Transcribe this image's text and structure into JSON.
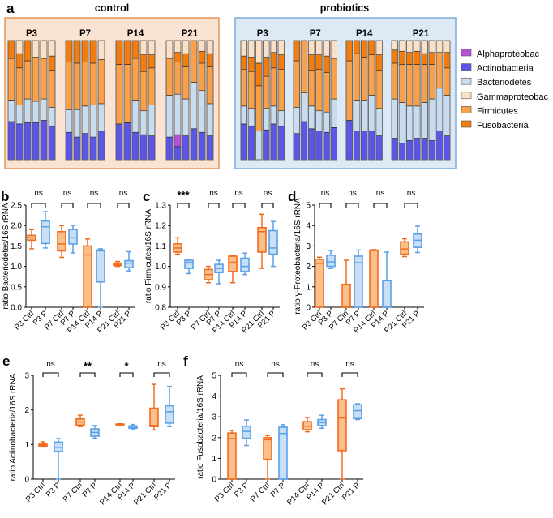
{
  "panel_letters": {
    "a": "a",
    "b": "b",
    "c": "c",
    "d": "d",
    "e": "e",
    "f": "f"
  },
  "colors": {
    "Alphaproteobac": "#b552d8",
    "Actinobacteria": "#5b55e8",
    "Bacteriodetes": "#c8dcf0",
    "Gammaproteobac": "#fbe0c6",
    "Firmicutes": "#f9a04a",
    "Fusobacteria": "#f27c0e",
    "ctrl_stroke": "#f26b1d",
    "ctrl_fill": "#fbc08a",
    "p_stroke": "#5aa0e6",
    "p_fill": "#c9dff5",
    "control_bg": "#fbe3d3",
    "control_border": "#e8955a",
    "probiotics_bg": "#dde9f5",
    "probiotics_border": "#7aaedd"
  },
  "chart_data": [
    {
      "type": "bar",
      "stacked": true,
      "panel": "a",
      "legend": [
        "Alphaproteobac",
        "Actinobacteria",
        "Bacteriodetes",
        "Gammaproteobac",
        "Firmicutes",
        "Fusobacteria"
      ],
      "legend_position": "right",
      "stack_order_bottom_to_top": [
        "Actinobacteria",
        "Alphaproteobac",
        "Bacteriodetes",
        "Firmicutes",
        "Fusobacteria",
        "Gammaproteobac"
      ],
      "conditions": [
        {
          "title": "control",
          "groups": [
            {
              "label": "P3",
              "bars": [
                [
                  0.32,
                  0,
                  0.18,
                  0.35,
                  0.15,
                  0
                ],
                [
                  0.3,
                  0,
                  0.16,
                  0.31,
                  0.12,
                  0.11
                ],
                [
                  0.31,
                  0,
                  0.2,
                  0.32,
                  0.17,
                  0
                ],
                [
                  0.31,
                  0,
                  0.18,
                  0.37,
                  0,
                  0.14
                ],
                [
                  0.33,
                  0,
                  0.18,
                  0.34,
                  0,
                  0.15
                ],
                [
                  0.28,
                  0,
                  0.16,
                  0.31,
                  0.12,
                  0.13
                ]
              ]
            },
            {
              "label": "P7",
              "bars": [
                [
                  0.23,
                  0,
                  0.19,
                  0.4,
                  0.18,
                  0
                ],
                [
                  0.19,
                  0,
                  0.23,
                  0.39,
                  0.19,
                  0
                ],
                [
                  0.22,
                  0,
                  0.23,
                  0.37,
                  0.18,
                  0
                ],
                [
                  0.19,
                  0,
                  0.27,
                  0.35,
                  0.19,
                  0
                ],
                [
                  0.24,
                  0,
                  0.23,
                  0.37,
                  0,
                  0.16
                ]
              ]
            },
            {
              "label": "P14",
              "bars": [
                [
                  0.3,
                  0,
                  0,
                  0.5,
                  0.2,
                  0
                ],
                [
                  0.31,
                  0,
                  0,
                  0.49,
                  0.2,
                  0
                ],
                [
                  0.23,
                  0,
                  0.27,
                  0.35,
                  0.15,
                  0
                ],
                [
                  0.21,
                  0,
                  0.2,
                  0.33,
                  0.14,
                  0.12
                ],
                [
                  0.2,
                  0,
                  0.26,
                  0.31,
                  0.11,
                  0.12
                ]
              ]
            },
            {
              "label": "P21",
              "bars": [
                [
                  0.19,
                  0,
                  0.35,
                  0.31,
                  0,
                  0.15
                ],
                [
                  0.11,
                  0.1,
                  0.34,
                  0.27,
                  0.08,
                  0.1
                ],
                [
                  0.2,
                  0,
                  0.31,
                  0.27,
                  0.11,
                  0.11
                ],
                [
                  0.26,
                  0,
                  0.39,
                  0.35,
                  0,
                  0
                ],
                [
                  0.23,
                  0,
                  0.35,
                  0.23,
                  0.1,
                  0.09
                ],
                [
                  0.2,
                  0,
                  0.27,
                  0.31,
                  0.11,
                  0.11
                ]
              ]
            }
          ]
        },
        {
          "title": "probiotics",
          "groups": [
            {
              "label": "P3",
              "bars": [
                [
                  0.3,
                  0,
                  0.15,
                  0.31,
                  0.11,
                  0.13
                ],
                [
                  0.28,
                  0,
                  0.15,
                  0.31,
                  0.12,
                  0.14
                ],
                [
                  0,
                  0,
                  0.24,
                  0.38,
                  0.19,
                  0.19
                ],
                [
                  0.25,
                  0,
                  0.18,
                  0.27,
                  0.16,
                  0.14
                ],
                [
                  0.3,
                  0,
                  0.15,
                  0.32,
                  0.13,
                  0.1
                ],
                [
                  0.28,
                  0,
                  0.13,
                  0.35,
                  0.12,
                  0.12
                ]
              ]
            },
            {
              "label": "P7",
              "bars": [
                [
                  0.22,
                  0,
                  0.22,
                  0.39,
                  0.17,
                  0
                ],
                [
                  0.32,
                  0,
                  0.24,
                  0.44,
                  0,
                  0
                ],
                [
                  0.26,
                  0,
                  0.19,
                  0.3,
                  0.13,
                  0.12
                ],
                [
                  0.24,
                  0,
                  0.17,
                  0.35,
                  0.12,
                  0.12
                ],
                [
                  0.23,
                  0,
                  0.17,
                  0.33,
                  0.14,
                  0.13
                ],
                [
                  0.27,
                  0,
                  0.24,
                  0.34,
                  0,
                  0.15
                ]
              ]
            },
            {
              "label": "P14",
              "bars": [
                [
                  0.33,
                  0,
                  0,
                  0.5,
                  0.17,
                  0
                ],
                [
                  0.24,
                  0,
                  0.26,
                  0.39,
                  0.11,
                  0
                ],
                [
                  0.24,
                  0,
                  0.26,
                  0.36,
                  0.14,
                  0
                ],
                [
                  0.24,
                  0,
                  0.3,
                  0.34,
                  0.12,
                  0
                ],
                [
                  0.2,
                  0,
                  0.23,
                  0.32,
                  0.13,
                  0.12
                ]
              ]
            },
            {
              "label": "P21",
              "bars": [
                [
                  0.18,
                  0,
                  0.33,
                  0.3,
                  0.11,
                  0.08
                ],
                [
                  0.14,
                  0,
                  0.34,
                  0.32,
                  0.11,
                  0.09
                ],
                [
                  0.16,
                  0,
                  0.29,
                  0.35,
                  0.1,
                  0.1
                ],
                [
                  0.18,
                  0,
                  0.27,
                  0.35,
                  0.11,
                  0.09
                ],
                [
                  0.18,
                  0,
                  0.3,
                  0.32,
                  0.09,
                  0.11
                ],
                [
                  0.16,
                  0,
                  0.35,
                  0.29,
                  0.1,
                  0.1
                ],
                [
                  0.24,
                  0,
                  0.36,
                  0.3,
                  0,
                  0.1
                ],
                [
                  0.2,
                  0,
                  0.34,
                  0.23,
                  0.13,
                  0.1
                ]
              ]
            }
          ]
        }
      ]
    },
    {
      "type": "box",
      "panel": "b",
      "ylabel": "ratio Bacteriodetes/16S rRNA",
      "ylim": [
        0,
        2.5
      ],
      "yticks": [
        "0.0",
        "0.5",
        "1.0",
        "1.5",
        "2.0",
        "2.5"
      ],
      "tick_values": [
        0,
        0.5,
        1,
        1.5,
        2,
        2.5
      ],
      "categories": [
        "P3 Ctrl",
        "P3 P",
        "P7 Ctrl",
        "P7 P",
        "P14 Ctrl",
        "P14 P",
        "P21 Ctrl",
        "P21 P"
      ],
      "boxes": [
        [
          1.43,
          1.64,
          1.7,
          1.76,
          1.9
        ],
        [
          1.45,
          1.56,
          1.97,
          2.11,
          2.34
        ],
        [
          1.22,
          1.38,
          1.55,
          1.85,
          2.0
        ],
        [
          1.33,
          1.55,
          1.7,
          1.9,
          2.0
        ],
        [
          0,
          0,
          1.28,
          1.5,
          1.67
        ],
        [
          0,
          0.62,
          1.38,
          1.4,
          1.43
        ],
        [
          1.0,
          1.02,
          1.05,
          1.08,
          1.12
        ],
        [
          0.89,
          0.97,
          1.08,
          1.14,
          1.36
        ]
      ],
      "significance": [
        "ns",
        "ns",
        "ns",
        "ns"
      ]
    },
    {
      "type": "box",
      "panel": "c",
      "ylabel": "ratio Firmicutes/16S rRNA",
      "ylim": [
        0.8,
        1.3
      ],
      "yticks": [
        "0.8",
        "0.9",
        "1.0",
        "1.1",
        "1.2",
        "1.3"
      ],
      "tick_values": [
        0.8,
        0.9,
        1.0,
        1.1,
        1.2,
        1.3
      ],
      "categories": [
        "P3 Ctrl",
        "P3 P",
        "P7 Ctrl",
        "P7 P",
        "P14 Ctrl",
        "P14 P",
        "P21 Ctrl",
        "P21 P"
      ],
      "boxes": [
        [
          1.06,
          1.07,
          1.09,
          1.11,
          1.14
        ],
        [
          0.965,
          0.99,
          1.02,
          1.03,
          1.035
        ],
        [
          0.92,
          0.935,
          0.96,
          0.985,
          1.0
        ],
        [
          0.915,
          0.97,
          0.99,
          1.01,
          1.03
        ],
        [
          0.92,
          0.975,
          1.02,
          1.05,
          1.055
        ],
        [
          0.96,
          0.975,
          1.0,
          1.04,
          1.065
        ],
        [
          0.99,
          1.07,
          1.17,
          1.19,
          1.255
        ],
        [
          1.0,
          1.06,
          1.09,
          1.175,
          1.22
        ]
      ],
      "significance": [
        "***",
        "ns",
        "ns",
        "ns"
      ]
    },
    {
      "type": "box",
      "panel": "d",
      "ylabel": "ratio γ-Proteobacteria/16S rRNA",
      "ylim": [
        0,
        5
      ],
      "yticks": [
        "0",
        "1",
        "2",
        "3",
        "4",
        "5"
      ],
      "tick_values": [
        0,
        1,
        2,
        3,
        4,
        5
      ],
      "categories": [
        "P3 Ctrl",
        "P3 P",
        "P7 Ctrl",
        "P7 P",
        "P14 Ctrl",
        "P14 P",
        "P21 Ctrl",
        "P21 P"
      ],
      "boxes": [
        [
          0,
          0,
          2.15,
          2.35,
          2.45
        ],
        [
          1.9,
          2.0,
          2.22,
          2.55,
          2.78
        ],
        [
          0,
          0,
          0,
          1.12,
          2.3
        ],
        [
          0,
          0,
          2.18,
          2.5,
          2.8
        ],
        [
          0,
          0,
          2.78,
          2.8,
          2.82
        ],
        [
          0,
          0,
          0,
          1.3,
          2.7
        ],
        [
          2.48,
          2.6,
          2.85,
          3.2,
          3.35
        ],
        [
          2.68,
          2.93,
          3.28,
          3.58,
          3.97
        ]
      ],
      "significance": [
        "ns",
        "ns",
        "ns",
        "ns"
      ]
    },
    {
      "type": "box",
      "panel": "e",
      "ylabel": "ratio Actinobacteria/16S rRNA",
      "ylim": [
        0,
        3
      ],
      "yticks": [
        "0",
        "1",
        "2",
        "3"
      ],
      "tick_values": [
        0,
        1,
        2,
        3
      ],
      "categories": [
        "P3 Ctrl",
        "P3 P",
        "P7 Ctrl",
        "P7 P",
        "P14 Ctrl",
        "P14 P",
        "P21 Ctrl",
        "P21 P"
      ],
      "boxes": [
        [
          0.93,
          0.95,
          0.98,
          1.01,
          1.08
        ],
        [
          0,
          0.8,
          0.92,
          1.07,
          1.17
        ],
        [
          1.52,
          1.56,
          1.65,
          1.74,
          1.85
        ],
        [
          1.18,
          1.24,
          1.35,
          1.45,
          1.55
        ],
        [
          1.56,
          1.57,
          1.58,
          1.59,
          1.6
        ],
        [
          1.45,
          1.47,
          1.5,
          1.54,
          1.58
        ],
        [
          1.42,
          1.52,
          1.55,
          2.05,
          2.74
        ],
        [
          1.52,
          1.62,
          1.95,
          2.12,
          2.68
        ]
      ],
      "significance": [
        "ns",
        "**",
        "*",
        "ns"
      ]
    },
    {
      "type": "box",
      "panel": "f",
      "ylabel": "ratio Fusobacteria/16S rRNA",
      "ylim": [
        0,
        5
      ],
      "yticks": [
        "0",
        "1",
        "2",
        "3",
        "4",
        "5"
      ],
      "tick_values": [
        0,
        1,
        2,
        3,
        4,
        5
      ],
      "categories": [
        "P3 Ctrl",
        "P3 P",
        "P7 Ctrl",
        "P7 P",
        "P14 Ctrl",
        "P14 P",
        "P21 Ctrl",
        "P21 P"
      ],
      "boxes": [
        [
          0,
          0,
          1.95,
          2.22,
          2.35
        ],
        [
          1.62,
          1.97,
          2.3,
          2.55,
          2.85
        ],
        [
          0,
          0.95,
          1.9,
          2.0,
          2.1
        ],
        [
          0,
          0,
          2.2,
          2.5,
          2.62
        ],
        [
          2.28,
          2.38,
          2.55,
          2.77,
          2.97
        ],
        [
          2.45,
          2.58,
          2.72,
          2.87,
          3.08
        ],
        [
          0,
          1.37,
          2.95,
          3.82,
          4.35
        ],
        [
          2.87,
          2.92,
          3.3,
          3.58,
          3.63
        ]
      ],
      "significance": [
        "ns",
        "ns",
        "ns",
        "ns"
      ]
    }
  ]
}
